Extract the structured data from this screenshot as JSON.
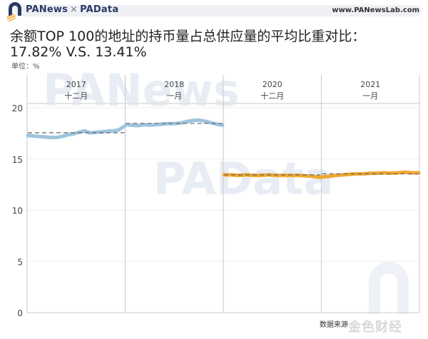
{
  "header": {
    "brand_left": "PANews",
    "brand_sep": "×",
    "brand_right": "PAData",
    "site": "www.PANewsLab.com",
    "logo_icon": "panews-arch-logo-icon"
  },
  "title": "余额TOP 100的地址的持币量占总供应量的平均比重对比：",
  "subtitle": "17.82% V.S. 13.41%",
  "unit_label": "单位：%",
  "footer": {
    "source_label": "数据来源",
    "watermark": "金色财经"
  },
  "watermarks": [
    "PANews",
    "PAData"
  ],
  "colors": {
    "series_2017_2018": "#9dc4dd",
    "series_2020_2021": "#f0a830",
    "average_line": "#666666",
    "gridline": "#eeeeee",
    "divider": "#c8c8c8"
  },
  "chart_data": {
    "type": "line",
    "title": "余额TOP 100的地址的持币量占总供应量的平均比重对比：17.82% V.S. 13.41%",
    "ylabel": "单位：%",
    "xlabel": "",
    "ylim": [
      0,
      20
    ],
    "yticks": [
      0,
      5,
      10,
      15,
      20
    ],
    "grid": true,
    "legend": "none",
    "panels": [
      {
        "year": "2017",
        "month": "十二月",
        "series": "2017-2018",
        "average": 17.56,
        "values": [
          17.3,
          17.25,
          17.2,
          17.15,
          17.1,
          17.1,
          17.2,
          17.35,
          17.45,
          17.6,
          17.75,
          17.55,
          17.6,
          17.65,
          17.7,
          17.75,
          17.85,
          18.2
        ]
      },
      {
        "year": "2018",
        "month": "一月",
        "series": "2017-2018",
        "average": 18.47,
        "values": [
          18.35,
          18.3,
          18.25,
          18.35,
          18.3,
          18.35,
          18.4,
          18.45,
          18.45,
          18.5,
          18.65,
          18.75,
          18.8,
          18.7,
          18.55,
          18.4,
          18.3
        ]
      },
      {
        "year": "2020",
        "month": "十二月",
        "series": "2020-2021",
        "average": 13.45,
        "values": [
          13.45,
          13.45,
          13.4,
          13.45,
          13.4,
          13.4,
          13.45,
          13.4,
          13.4,
          13.4,
          13.4,
          13.35,
          13.3,
          13.2
        ]
      },
      {
        "year": "2021",
        "month": "一月",
        "series": "2020-2021",
        "average": 13.55,
        "values": [
          13.25,
          13.3,
          13.4,
          13.45,
          13.5,
          13.55,
          13.55,
          13.6,
          13.6,
          13.65,
          13.6,
          13.65,
          13.7,
          13.65,
          13.65
        ]
      }
    ]
  }
}
